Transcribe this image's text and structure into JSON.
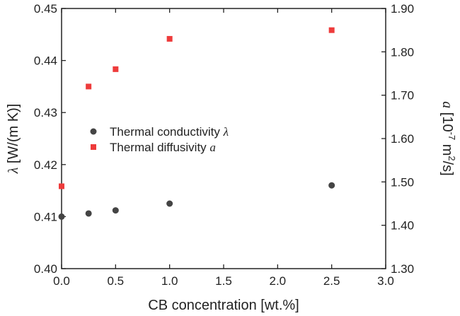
{
  "chart_data": {
    "type": "scatter",
    "xlabel": "CB concentration [wt.%]",
    "xlim": [
      0.0,
      3.0
    ],
    "x_ticks": [
      "0.0",
      "0.5",
      "1.0",
      "1.5",
      "2.0",
      "2.5",
      "3.0"
    ],
    "y_left": {
      "label_prefix": "λ",
      "label_suffix": " [W/(m K)]",
      "ylim": [
        0.4,
        0.45
      ],
      "ticks": [
        "0.40",
        "0.41",
        "0.42",
        "0.43",
        "0.44",
        "0.45"
      ]
    },
    "y_right": {
      "label_prefix": "a",
      "label_suffix_parts": [
        " [10",
        "-7",
        " m",
        "2",
        "/s]"
      ],
      "ylim": [
        1.3,
        1.9
      ],
      "ticks": [
        "1.30",
        "1.40",
        "1.50",
        "1.60",
        "1.70",
        "1.80",
        "1.90"
      ]
    },
    "legend_position": "center-left",
    "series": [
      {
        "name_text": "Thermal conductivity ",
        "name_symbol": "λ",
        "axis": "left",
        "marker": "circle",
        "color": "#444444",
        "x": [
          0.0,
          0.25,
          0.5,
          1.0,
          2.5
        ],
        "y": [
          0.41,
          0.4106,
          0.4112,
          0.4125,
          0.416
        ]
      },
      {
        "name_text": "Thermal diffusivity ",
        "name_symbol": "a",
        "axis": "right",
        "marker": "square",
        "color": "#ee3b3b",
        "x": [
          0.0,
          0.25,
          0.5,
          1.0,
          2.5
        ],
        "y": [
          1.49,
          1.72,
          1.76,
          1.83,
          1.85
        ]
      }
    ]
  }
}
